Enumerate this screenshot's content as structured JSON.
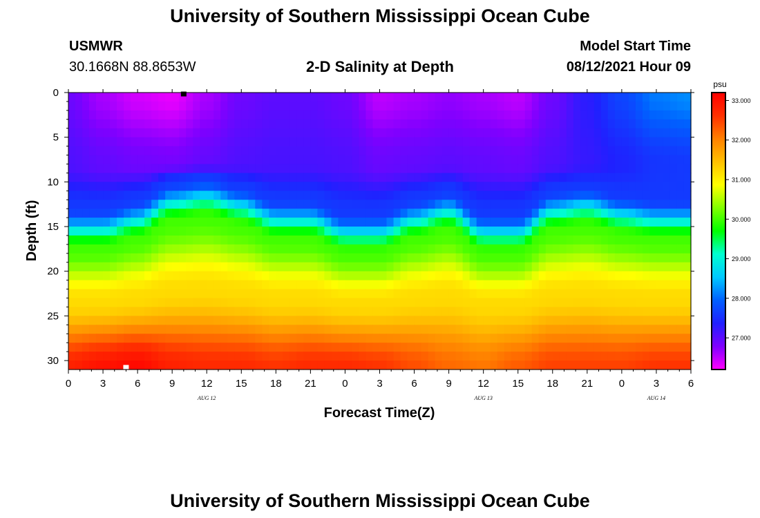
{
  "page_title_top": "University of Southern Mississippi Ocean Cube",
  "page_title_bottom": "University of Southern Mississippi Ocean Cube",
  "station": {
    "name": "USMWR",
    "coords": "30.1668N  88.8653W"
  },
  "model": {
    "start_label": "Model Start Time",
    "start_value": "08/12/2021 Hour 09"
  },
  "chart_data": {
    "type": "heatmap",
    "title": "2-D Salinity at Depth",
    "xlabel": "Forecast Time(Z)",
    "ylabel": "Depth (ft)",
    "x_tick_labels": [
      "0",
      "3",
      "6",
      "9",
      "12",
      "15",
      "18",
      "21",
      "0",
      "3",
      "6",
      "9",
      "12",
      "15",
      "18",
      "21",
      "0",
      "3",
      "6"
    ],
    "x_range_hours": [
      0,
      54
    ],
    "date_labels": [
      {
        "text": "AUG 12",
        "hour": 12
      },
      {
        "text": "AUG 13",
        "hour": 36
      },
      {
        "text": "AUG 14",
        "hour": 51
      }
    ],
    "y_ticks": [
      0,
      5,
      10,
      15,
      20,
      25,
      30
    ],
    "ylim": [
      0,
      31
    ],
    "y_inverted": true,
    "colorbar": {
      "unit": "psu",
      "min": 26.2,
      "max": 33.2,
      "ticks": [
        "33.000",
        "32.000",
        "31.000",
        "30.000",
        "29.000",
        "28.000",
        "27.000"
      ],
      "tick_values": [
        33,
        32,
        31,
        30,
        29,
        28,
        27
      ],
      "colors": [
        "#ff00ff",
        "#8000ff",
        "#2020ff",
        "#0060ff",
        "#00c8ff",
        "#00ffd0",
        "#00ff00",
        "#80ff00",
        "#ffff00",
        "#ffc000",
        "#ff8000",
        "#ff3000",
        "#ff0000"
      ]
    },
    "field_model": {
      "surface_salinity_knots": [
        [
          0,
          26.9
        ],
        [
          3,
          26.6
        ],
        [
          6,
          26.4
        ],
        [
          9,
          26.3
        ],
        [
          12,
          26.6
        ],
        [
          15,
          26.9
        ],
        [
          18,
          27.0
        ],
        [
          21,
          27.0
        ],
        [
          24,
          26.9
        ],
        [
          27,
          26.5
        ],
        [
          30,
          26.6
        ],
        [
          33,
          26.7
        ],
        [
          36,
          26.6
        ],
        [
          39,
          26.5
        ],
        [
          42,
          26.9
        ],
        [
          45,
          27.3
        ],
        [
          48,
          27.7
        ],
        [
          51,
          28.1
        ],
        [
          54,
          28.2
        ]
      ],
      "thermocline_depth_knots": [
        [
          0,
          13.0
        ],
        [
          3,
          13.0
        ],
        [
          6,
          12.0
        ],
        [
          9,
          10.0
        ],
        [
          12,
          9.5
        ],
        [
          15,
          10.5
        ],
        [
          18,
          12.0
        ],
        [
          21,
          12.0
        ],
        [
          24,
          13.5
        ],
        [
          27,
          13.5
        ],
        [
          30,
          12.0
        ],
        [
          33,
          11.0
        ],
        [
          36,
          13.5
        ],
        [
          39,
          13.5
        ],
        [
          42,
          11.0
        ],
        [
          45,
          10.5
        ],
        [
          48,
          11.5
        ],
        [
          51,
          12.0
        ],
        [
          54,
          12.0
        ]
      ],
      "bottom_salinity_knots": [
        [
          0,
          32.8
        ],
        [
          3,
          33.0
        ],
        [
          6,
          33.1
        ],
        [
          9,
          32.8
        ],
        [
          12,
          32.7
        ],
        [
          15,
          32.7
        ],
        [
          18,
          32.6
        ],
        [
          21,
          32.7
        ],
        [
          24,
          32.7
        ],
        [
          27,
          32.6
        ],
        [
          30,
          32.4
        ],
        [
          33,
          32.2
        ],
        [
          36,
          32.1
        ],
        [
          39,
          32.3
        ],
        [
          42,
          32.5
        ],
        [
          45,
          32.5
        ],
        [
          48,
          32.5
        ],
        [
          51,
          32.6
        ],
        [
          54,
          32.6
        ]
      ],
      "top_layer_depth_ft": 8,
      "mid_layer_salinity": 30.0,
      "bottom_layer_start_ft": 23
    },
    "markers": [
      {
        "shape": "square",
        "color": "#000000",
        "hour": 10,
        "depth_ft": 0.2
      },
      {
        "shape": "square",
        "color": "#ffffff",
        "hour": 5,
        "depth_ft": 30.8
      }
    ]
  }
}
